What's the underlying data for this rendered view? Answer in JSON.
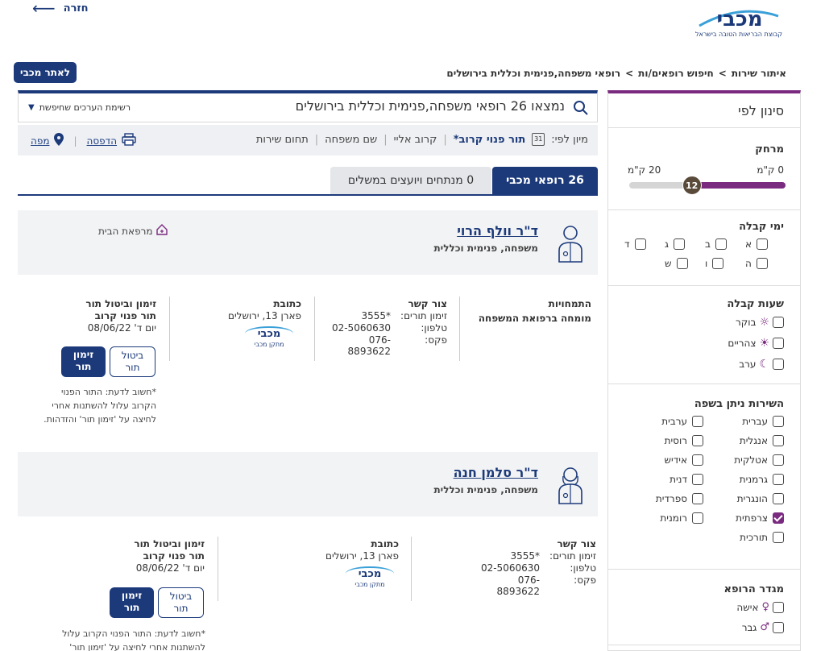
{
  "header": {
    "back_label": "חזרה",
    "logo_text": "מכבי",
    "logo_tagline": "קבוצת הבריאות הטובה בישראל",
    "site_button": "לאתר מכבי"
  },
  "breadcrumb": {
    "items": [
      "איתור שירות",
      "חיפוש רופאים/ות",
      "רופאי משפחה,פנימית וכללית בירושלים"
    ],
    "sep": ">"
  },
  "search": {
    "result_text": "נמצאו 26 רופאי משפחה,פנימית וכללית בירושלים",
    "saved_list_label": "רשימת הערכים שחיפשת"
  },
  "sort": {
    "label": "מיון לפי:",
    "calendar_num": "31",
    "options": [
      "תור פנוי קרוב*",
      "קרוב אליי",
      "שם משפחה",
      "תחום שירות"
    ],
    "print_label": "הדפסה",
    "map_label": "מפה"
  },
  "tabs": {
    "maccabi": "26 רופאי מכבי",
    "consultants": "0 מנתחים ויועצים במשלים"
  },
  "filters": {
    "title": "סינון לפי",
    "distance": {
      "title": "מרחק",
      "min_label": "0 ק\"מ",
      "max_label": "20 ק\"מ",
      "value": "12",
      "fraction": 0.6
    },
    "days": {
      "title": "ימי קבלה",
      "items": [
        "א",
        "ב",
        "ג",
        "ד",
        "ה",
        "ו",
        "ש"
      ]
    },
    "hours": {
      "title": "שעות קבלה",
      "items": [
        "בוקר",
        "צהריים",
        "ערב"
      ]
    },
    "language": {
      "title": "השירות ניתן בשפה",
      "right": [
        "עברית",
        "אנגלית",
        "אטלקית",
        "גרמנית",
        "הונגרית",
        "צרפתית",
        "תורכית"
      ],
      "left": [
        "ערבית",
        "רוסית",
        "אידיש",
        "דנית",
        "ספרדית",
        "רומנית"
      ],
      "checked": "צרפתית"
    },
    "gender": {
      "title": "מגדר הרופא",
      "items": [
        "אישה",
        "גבר"
      ]
    }
  },
  "doctors": [
    {
      "name": "ד\"ר וולף הרוי",
      "specialty": "משפחה, פנימית וכללית",
      "tag": "מרפאת הבית",
      "expertise_title": "התמחויות",
      "expertise": "מומחה ברפואת המשפחה",
      "contact_title": "צור קשר",
      "appt_label": "זימון תורים:",
      "appt_value": "3555*",
      "phone_label": "טלפון:",
      "phone_value": "02-5060630",
      "fax_label": "פקס:",
      "fax_value": "076-8893622",
      "address_title": "כתובת",
      "address": "פארן 13, ירושלים",
      "facility_label": "מתקן מכבי",
      "booking_title": "זימון וביטול תור",
      "next_title": "תור פנוי קרוב",
      "next_date": "יום ד' 08/06/22",
      "cancel_btn": "ביטול תור",
      "book_btn": "זימון תור",
      "note": "*חשוב לדעת: התור הפנוי הקרוב עלול להשתנות אחרי לחיצה על 'זימון תור' והזדהות."
    },
    {
      "name": "ד\"ר סלמן חנה",
      "specialty": "משפחה, פנימית וכללית",
      "contact_title": "צור קשר",
      "appt_label": "זימון תורים:",
      "appt_value": "3555*",
      "phone_label": "טלפון:",
      "phone_value": "02-5060630",
      "fax_label": "פקס:",
      "fax_value": "076-8893622",
      "address_title": "כתובת",
      "address": "פארן 13, ירושלים",
      "facility_label": "מתקן מכבי",
      "booking_title": "זימון וביטול תור",
      "next_title": "תור פנוי קרוב",
      "next_date": "יום ד' 08/06/22",
      "cancel_btn": "ביטול תור",
      "book_btn": "זימון תור",
      "note": "*חשוב לדעת: התור הפנוי הקרוב עלול להשתנות אחרי לחיצה על 'זימון תור'"
    }
  ],
  "colors": {
    "navy": "#1c3a7a",
    "purple": "#7a2b80",
    "panel_bg": "#f2f3f5"
  }
}
